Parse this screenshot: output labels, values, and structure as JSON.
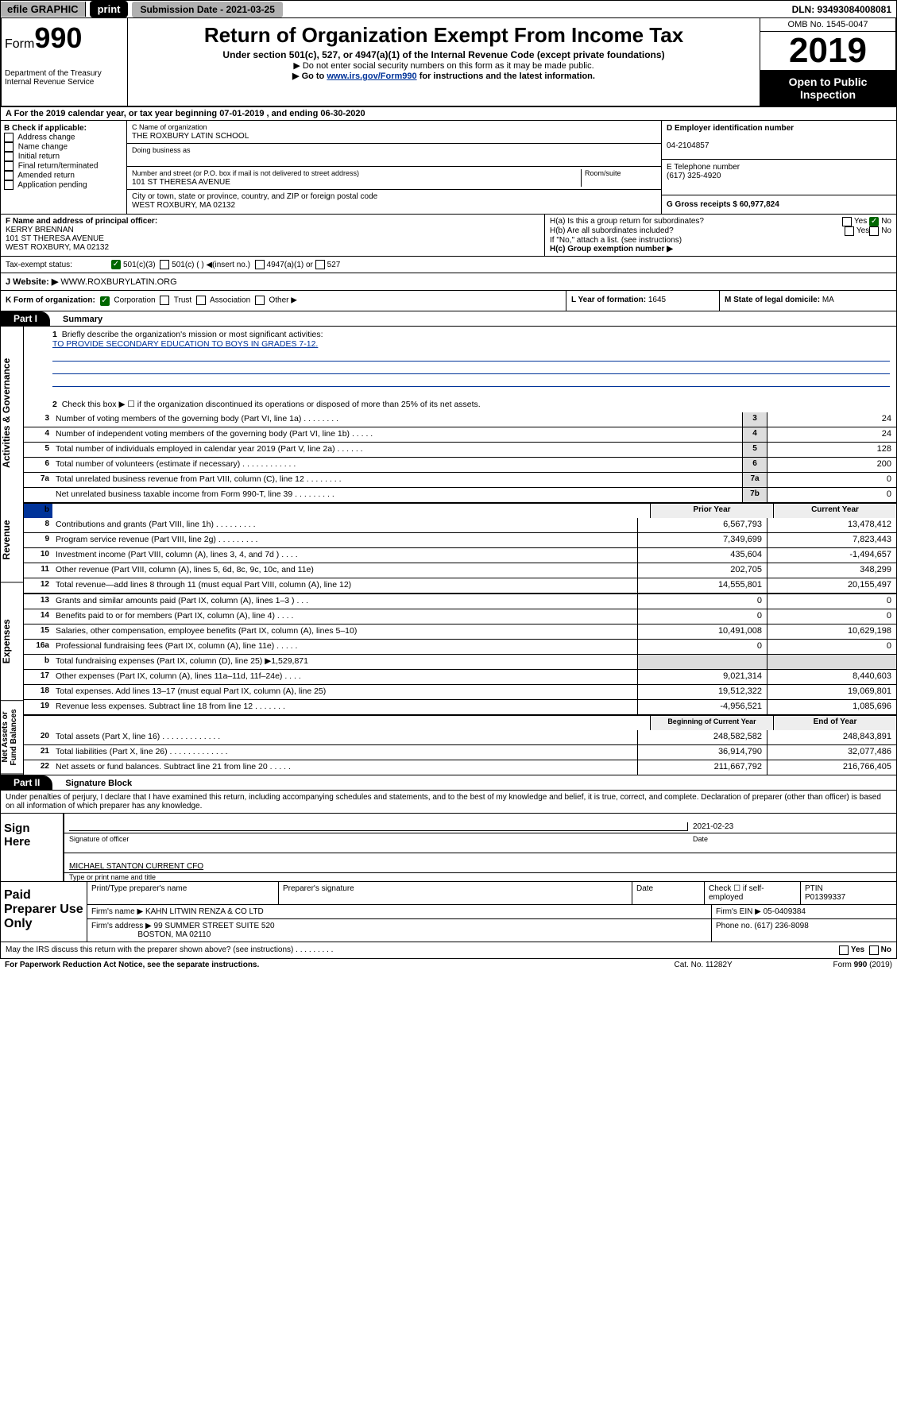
{
  "topbar": {
    "efile": "efile GRAPHIC",
    "print": "print",
    "submission_label": "Submission Date - 2021-03-25",
    "dln": "DLN: 93493084008081"
  },
  "header": {
    "form_prefix": "Form",
    "form_number": "990",
    "dept": "Department of the Treasury",
    "irs": "Internal Revenue Service",
    "title": "Return of Organization Exempt From Income Tax",
    "sub1": "Under section 501(c), 527, or 4947(a)(1) of the Internal Revenue Code (except private foundations)",
    "sub2": "▶ Do not enter social security numbers on this form as it may be made public.",
    "sub3_a": "▶ Go to ",
    "sub3_link": "www.irs.gov/Form990",
    "sub3_b": " for instructions and the latest information.",
    "omb": "OMB No. 1545-0047",
    "year": "2019",
    "open": "Open to Public Inspection"
  },
  "rowA": "A For the 2019 calendar year, or tax year beginning 07-01-2019    , and ending 06-30-2020",
  "colB": {
    "hdr": "B Check if applicable:",
    "opts": [
      "Address change",
      "Name change",
      "Initial return",
      "Final return/terminated",
      "Amended return",
      "Application pending"
    ]
  },
  "colC": {
    "name_lbl": "C Name of organization",
    "name": "THE ROXBURY LATIN SCHOOL",
    "dba_lbl": "Doing business as",
    "dba": "",
    "addr_lbl": "Number and street (or P.O. box if mail is not delivered to street address)",
    "room_lbl": "Room/suite",
    "addr": "101 ST THERESA AVENUE",
    "city_lbl": "City or town, state or province, country, and ZIP or foreign postal code",
    "city": "WEST ROXBURY, MA  02132"
  },
  "colDE": {
    "d_lbl": "D Employer identification number",
    "ein": "04-2104857",
    "e_lbl": "E Telephone number",
    "phone": "(617) 325-4920",
    "g_lbl": "G Gross receipts $ 60,977,824"
  },
  "colF": {
    "lbl": "F Name and address of principal officer:",
    "name": "KERRY BRENNAN",
    "addr1": "101 ST THERESA AVENUE",
    "addr2": "WEST ROXBURY, MA  02132"
  },
  "colH": {
    "ha": "H(a)  Is this a group return for subordinates?",
    "hb": "H(b)  Are all subordinates included?",
    "hc": "H(c)  Group exemption number ▶",
    "note": "If \"No,\" attach a list. (see instructions)",
    "yes": "Yes",
    "no": "No"
  },
  "taxexempt": {
    "lbl": "Tax-exempt status:",
    "o1": "501(c)(3)",
    "o2": "501(c) (   ) ◀(insert no.)",
    "o3": "4947(a)(1) or",
    "o4": "527"
  },
  "rowJ": {
    "lbl": "J    Website: ▶",
    "val": "  WWW.ROXBURYLATIN.ORG"
  },
  "rowK": {
    "k": "K Form of organization:",
    "corp": "Corporation",
    "trust": "Trust",
    "assoc": "Association",
    "other": "Other ▶",
    "l_lbl": "L Year of formation: ",
    "l_val": "1645",
    "m_lbl": "M State of legal domicile: ",
    "m_val": "MA"
  },
  "part1": {
    "hdr": "Part I",
    "title": "Summary",
    "side_gov": "Activities & Governance",
    "side_rev": "Revenue",
    "side_exp": "Expenses",
    "side_net": "Net Assets or Fund Balances",
    "q1": "Briefly describe the organization's mission or most significant activities:",
    "mission": "TO PROVIDE SECONDARY EDUCATION TO BOYS IN GRADES 7-12.",
    "q2": "Check this box ▶ ☐  if the organization discontinued its operations or disposed of more than 25% of its net assets.",
    "lines_gov": [
      {
        "n": "3",
        "d": "Number of voting members of the governing body (Part VI, line 1a)   .    .    .    .    .    .    .    .",
        "b": "3",
        "v": "24"
      },
      {
        "n": "4",
        "d": "Number of independent voting members of the governing body (Part VI, line 1b)    .    .    .    .    .",
        "b": "4",
        "v": "24"
      },
      {
        "n": "5",
        "d": "Total number of individuals employed in calendar year 2019 (Part V, line 2a)    .    .    .    .    .    .",
        "b": "5",
        "v": "128"
      },
      {
        "n": "6",
        "d": "Total number of volunteers (estimate if necessary)    .    .    .    .    .    .    .    .    .    .    .    .",
        "b": "6",
        "v": "200"
      },
      {
        "n": "7a",
        "d": "Total unrelated business revenue from Part VIII, column (C), line 12    .    .    .    .    .    .    .    .",
        "b": "7a",
        "v": "0"
      },
      {
        "n": "",
        "d": "Net unrelated business taxable income from Form 990-T, line 39    .    .    .    .    .    .    .    .    .",
        "b": "7b",
        "v": "0"
      }
    ],
    "col_prior": "Prior Year",
    "col_curr": "Current Year",
    "lines_rev": [
      {
        "n": "8",
        "d": "Contributions and grants (Part VIII, line 1h)    .    .    .    .    .    .    .    .    .",
        "p": "6,567,793",
        "c": "13,478,412"
      },
      {
        "n": "9",
        "d": "Program service revenue (Part VIII, line 2g)    .    .    .    .    .    .    .    .    .",
        "p": "7,349,699",
        "c": "7,823,443"
      },
      {
        "n": "10",
        "d": "Investment income (Part VIII, column (A), lines 3, 4, and 7d )    .    .    .    .",
        "p": "435,604",
        "c": "-1,494,657"
      },
      {
        "n": "11",
        "d": "Other revenue (Part VIII, column (A), lines 5, 6d, 8c, 9c, 10c, and 11e)",
        "p": "202,705",
        "c": "348,299"
      },
      {
        "n": "12",
        "d": "Total revenue—add lines 8 through 11 (must equal Part VIII, column (A), line 12)",
        "p": "14,555,801",
        "c": "20,155,497"
      }
    ],
    "lines_exp": [
      {
        "n": "13",
        "d": "Grants and similar amounts paid (Part IX, column (A), lines 1–3 )    .    .    .",
        "p": "0",
        "c": "0"
      },
      {
        "n": "14",
        "d": "Benefits paid to or for members (Part IX, column (A), line 4)    .    .    .    .",
        "p": "0",
        "c": "0"
      },
      {
        "n": "15",
        "d": "Salaries, other compensation, employee benefits (Part IX, column (A), lines 5–10)",
        "p": "10,491,008",
        "c": "10,629,198"
      },
      {
        "n": "16a",
        "d": "Professional fundraising fees (Part IX, column (A), line 11e)    .    .    .    .    .",
        "p": "0",
        "c": "0"
      },
      {
        "n": "b",
        "d": "Total fundraising expenses (Part IX, column (D), line 25) ▶1,529,871",
        "p": "",
        "c": "",
        "gray": true
      },
      {
        "n": "17",
        "d": "Other expenses (Part IX, column (A), lines 11a–11d, 11f–24e)    .    .    .    .",
        "p": "9,021,314",
        "c": "8,440,603"
      },
      {
        "n": "18",
        "d": "Total expenses. Add lines 13–17 (must equal Part IX, column (A), line 25)",
        "p": "19,512,322",
        "c": "19,069,801"
      },
      {
        "n": "19",
        "d": "Revenue less expenses. Subtract line 18 from line 12    .    .    .    .    .    .    .",
        "p": "-4,956,521",
        "c": "1,085,696"
      }
    ],
    "col_begin": "Beginning of Current Year",
    "col_end": "End of Year",
    "lines_net": [
      {
        "n": "20",
        "d": "Total assets (Part X, line 16)    .    .    .    .    .    .    .    .    .    .    .    .    .",
        "p": "248,582,582",
        "c": "248,843,891"
      },
      {
        "n": "21",
        "d": "Total liabilities (Part X, line 26)    .    .    .    .    .    .    .    .    .    .    .    .    .",
        "p": "36,914,790",
        "c": "32,077,486"
      },
      {
        "n": "22",
        "d": "Net assets or fund balances. Subtract line 21 from line 20    .    .    .    .    .",
        "p": "211,667,792",
        "c": "216,766,405"
      }
    ]
  },
  "part2": {
    "hdr": "Part II",
    "title": "Signature Block",
    "perjury": "Under penalties of perjury, I declare that I have examined this return, including accompanying schedules and statements, and to the best of my knowledge and belief, it is true, correct, and complete. Declaration of preparer (other than officer) is based on all information of which preparer has any knowledge.",
    "sign_here": "Sign Here",
    "sig_officer": "Signature of officer",
    "date": "2021-02-23",
    "date_lbl": "Date",
    "officer_name": "MICHAEL STANTON  CURRENT CFO",
    "type_name": "Type or print name and title",
    "paid": "Paid Preparer Use Only",
    "prep_name_lbl": "Print/Type preparer's name",
    "prep_sig_lbl": "Preparer's signature",
    "prep_date_lbl": "Date",
    "self_emp": "Check ☐ if self-employed",
    "ptin_lbl": "PTIN",
    "ptin": "P01399337",
    "firm_name_lbl": "Firm's name      ▶ ",
    "firm_name": "KAHN LITWIN RENZA & CO LTD",
    "firm_ein_lbl": "Firm's EIN ▶ ",
    "firm_ein": "05-0409384",
    "firm_addr_lbl": "Firm's address  ▶ ",
    "firm_addr1": "99 SUMMER STREET SUITE 520",
    "firm_addr2": "BOSTON, MA  02110",
    "phone_lbl": "Phone no. ",
    "phone": "(617) 236-8098"
  },
  "footer": {
    "discuss": "May the IRS discuss this return with the preparer shown above? (see instructions)     .     .     .     .     .     .     .     .     .",
    "yes": "Yes",
    "no": "No",
    "pra": "For Paperwork Reduction Act Notice, see the separate instructions.",
    "cat": "Cat. No. 11282Y",
    "form": "Form 990 (2019)"
  }
}
